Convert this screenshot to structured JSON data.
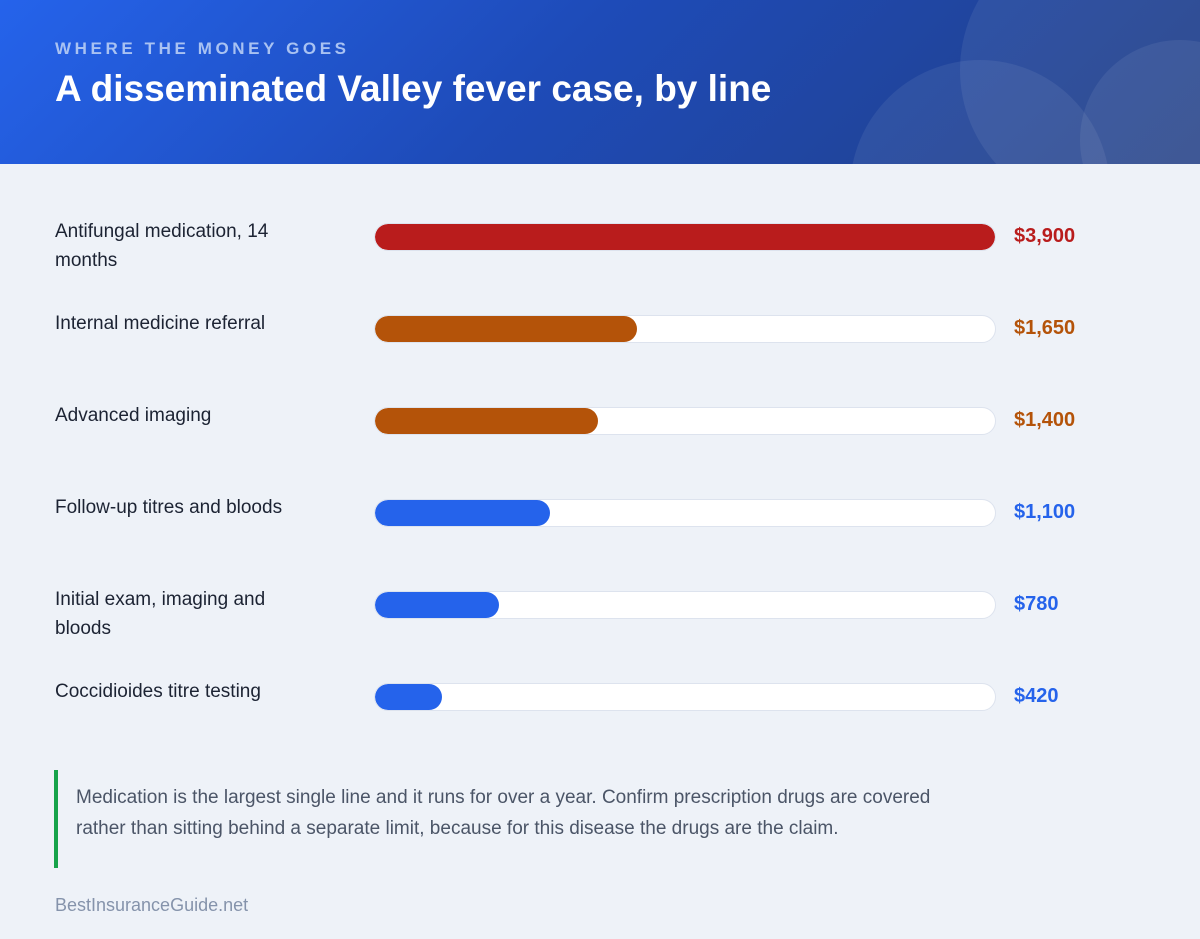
{
  "header": {
    "kicker": "WHERE THE MONEY GOES",
    "title": "A disseminated Valley fever case, by line"
  },
  "colors": {
    "red": "#b91c1c",
    "orange": "#b45309",
    "blue": "#2563eb",
    "note_accent": "#16a34a"
  },
  "chart_data": {
    "type": "bar",
    "orientation": "horizontal",
    "title": "A disseminated Valley fever case, by line",
    "categories": [
      "Antifungal medication, 14 months",
      "Internal medicine referral",
      "Advanced imaging",
      "Follow-up titres and bloods",
      "Initial exam, imaging and bloods",
      "Coccidioides titre testing"
    ],
    "values": [
      3900,
      1650,
      1400,
      1100,
      780,
      420
    ],
    "value_labels": [
      "$3,900",
      "$1,650",
      "$1,400",
      "$1,100",
      "$780",
      "$420"
    ],
    "bar_colors": [
      "#b91c1c",
      "#b45309",
      "#b45309",
      "#2563eb",
      "#2563eb",
      "#2563eb"
    ],
    "xlim": [
      0,
      3900
    ],
    "grid": false,
    "legend": "none"
  },
  "note": {
    "text": "Medication is the largest single line and it runs for over a year. Confirm prescription drugs are covered rather than sitting behind a separate limit, because for this disease the drugs are the claim."
  },
  "footer": {
    "source": "BestInsuranceGuide.net"
  }
}
